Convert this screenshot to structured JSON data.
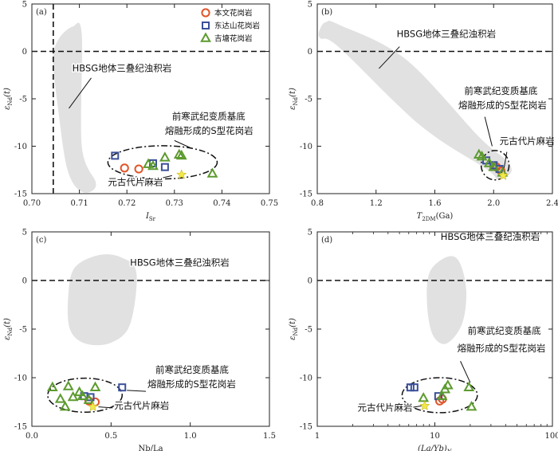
{
  "legend": {
    "items": [
      {
        "name": "本文花岗岩",
        "marker": "circle",
        "color": "#e0562a"
      },
      {
        "name": "东达山花岗岩",
        "marker": "square",
        "color": "#3a4f9a"
      },
      {
        "name": "吉塘花岗岩",
        "marker": "triangle",
        "color": "#5c9a2e"
      }
    ],
    "gneiss_color": "#f2e84a"
  },
  "colors": {
    "field": "#e1e1e1",
    "frame": "#222222"
  },
  "chart_data": [
    {
      "type": "scatter",
      "panel_label": "(a)",
      "xlabel": "I",
      "xlabel_sub": "Sr",
      "ylabel": "ε",
      "ylabel_sub": "Nd",
      "ylabel_suffix": "(t)",
      "xlim": [
        0.7,
        0.75
      ],
      "ylim": [
        -15,
        5
      ],
      "x_ticks": [
        0.7,
        0.71,
        0.72,
        0.73,
        0.74,
        0.75
      ],
      "x_tick_labels": [
        "0.70",
        "0.71",
        "0.72",
        "0.73",
        "0.74",
        "0.75"
      ],
      "y_ticks": [
        -15,
        -10,
        -5,
        0,
        5
      ],
      "y_tick_labels": [
        "-15",
        "-10",
        "-5",
        "0",
        "5"
      ],
      "hlines": [
        0
      ],
      "vlines": [
        0.7045
      ],
      "series": [
        {
          "name": "本文花岗岩",
          "marker": "circle",
          "points": [
            [
              0.7195,
              -12.3
            ],
            [
              0.7225,
              -12.4
            ]
          ]
        },
        {
          "name": "东达山花岗岩",
          "marker": "square",
          "points": [
            [
              0.7175,
              -11.0
            ],
            [
              0.7255,
              -11.8
            ],
            [
              0.728,
              -12.2
            ]
          ]
        },
        {
          "name": "吉塘花岗岩",
          "marker": "triangle",
          "points": [
            [
              0.7245,
              -11.9
            ],
            [
              0.728,
              -11.2
            ],
            [
              0.731,
              -10.9
            ],
            [
              0.7315,
              -11.0
            ],
            [
              0.738,
              -12.9
            ],
            [
              0.7255,
              -12.1
            ]
          ]
        }
      ],
      "gneiss": [
        [
          0.7315,
          -13.0
        ]
      ],
      "field": {
        "label": "HBSG地体三叠纪浊积岩",
        "polygon": [
          [
            0.7055,
            1.2
          ],
          [
            0.7085,
            2.6
          ],
          [
            0.7105,
            1.8
          ],
          [
            0.7105,
            -10.0
          ],
          [
            0.7135,
            -14.0
          ],
          [
            0.7105,
            -14.8
          ],
          [
            0.7075,
            -12.5
          ],
          [
            0.7055,
            -6.0
          ],
          [
            0.7045,
            -1.0
          ]
        ]
      },
      "ellipse": {
        "cx": 0.7275,
        "cy": -11.7,
        "rx": 0.0115,
        "ry": 1.75
      },
      "annotations": [
        {
          "text": "HBSG地体三叠纪浊积岩",
          "x": 0.7085,
          "y": -2.1
        },
        {
          "text": "前寒武纪变质基底",
          "x": 0.7295,
          "y": -7.2
        },
        {
          "text": "熔融形成的S型花岗岩",
          "x": 0.728,
          "y": -8.7
        },
        {
          "text": "元古代片麻岩",
          "x": 0.716,
          "y": -14.1
        }
      ],
      "leaders": [
        [
          [
            0.7125,
            -2.8
          ],
          [
            0.7078,
            -6.0
          ]
        ],
        [
          [
            0.73,
            -9.4
          ],
          [
            0.7335,
            -10.2
          ]
        ],
        [
          [
            0.7235,
            -13.8
          ],
          [
            0.7295,
            -13.1
          ]
        ]
      ]
    },
    {
      "type": "scatter",
      "panel_label": "(b)",
      "xlabel": "T",
      "xlabel_sub": "2DM",
      "xlabel_suffix": "(Ga)",
      "ylabel": "ε",
      "ylabel_sub": "Nd",
      "ylabel_suffix": "(t)",
      "xlim": [
        0.8,
        2.4
      ],
      "ylim": [
        -15,
        5
      ],
      "x_ticks": [
        0.8,
        1.2,
        1.6,
        2.0,
        2.4
      ],
      "x_tick_labels": [
        "0.8",
        "1.2",
        "1.6",
        "2.0",
        "2.4"
      ],
      "y_ticks": [
        -15,
        -10,
        -5,
        0,
        5
      ],
      "y_tick_labels": [
        "-15",
        "-10",
        "-5",
        "0",
        "5"
      ],
      "hlines": [
        0
      ],
      "vlines": [],
      "series": [
        {
          "name": "本文花岗岩",
          "marker": "circle",
          "points": [
            [
              2.02,
              -12.2
            ],
            [
              2.05,
              -12.6
            ]
          ]
        },
        {
          "name": "东达山花岗岩",
          "marker": "square",
          "points": [
            [
              1.95,
              -11.5
            ],
            [
              2.0,
              -12.0
            ],
            [
              2.04,
              -12.4
            ]
          ]
        },
        {
          "name": "吉塘花岗岩",
          "marker": "triangle",
          "points": [
            [
              1.9,
              -10.9
            ],
            [
              1.92,
              -11.1
            ],
            [
              1.97,
              -11.8
            ],
            [
              2.0,
              -12.2
            ],
            [
              2.06,
              -12.8
            ]
          ]
        }
      ],
      "gneiss": [
        [
          2.065,
          -13.1
        ]
      ],
      "field": {
        "label": "HBSG地体三叠纪浊积岩",
        "polygon": [
          [
            0.82,
            2.4
          ],
          [
            0.86,
            3.1
          ],
          [
            0.95,
            2.8
          ],
          [
            1.4,
            -0.8
          ],
          [
            1.9,
            -9.0
          ],
          [
            2.08,
            -11.4
          ],
          [
            2.12,
            -12.7
          ],
          [
            2.03,
            -13.5
          ],
          [
            1.95,
            -12.4
          ],
          [
            1.5,
            -7.8
          ],
          [
            0.95,
            0.4
          ],
          [
            0.82,
            1.4
          ]
        ]
      },
      "ellipse": {
        "cx": 2.01,
        "cy": -12.0,
        "rx": 0.095,
        "ry": 1.55
      },
      "annotations": [
        {
          "text": "HBSG地体三叠纪浊积岩",
          "x": 1.34,
          "y": 1.5
        },
        {
          "text": "前寒武纪变质基底",
          "x": 1.8,
          "y": -4.5
        },
        {
          "text": "熔融形成的S型花岗岩",
          "x": 1.76,
          "y": -6.0
        },
        {
          "text": "元古代片麻岩",
          "x": 2.04,
          "y": -9.8
        }
      ],
      "leaders": [
        [
          [
            1.36,
            0.5
          ],
          [
            1.22,
            -1.8
          ]
        ],
        [
          [
            1.94,
            -6.9
          ],
          [
            1.99,
            -10.0
          ]
        ],
        [
          [
            2.09,
            -10.6
          ],
          [
            2.07,
            -12.4
          ]
        ]
      ]
    },
    {
      "type": "scatter",
      "panel_label": "(c)",
      "xlabel": "Nb/La",
      "ylabel": "ε",
      "ylabel_sub": "Nd",
      "ylabel_suffix": "(t)",
      "xlim": [
        0.0,
        1.5
      ],
      "ylim": [
        -15,
        5
      ],
      "x_ticks": [
        0.0,
        0.5,
        1.0,
        1.5
      ],
      "x_tick_labels": [
        "0.0",
        "0.5",
        "1.0",
        "1.5"
      ],
      "y_ticks": [
        -15,
        -10,
        -5,
        0,
        5
      ],
      "y_tick_labels": [
        "-15",
        "-10",
        "-5",
        "0",
        "5"
      ],
      "hlines": [
        0
      ],
      "vlines": [],
      "series": [
        {
          "name": "本文花岗岩",
          "marker": "circle",
          "points": [
            [
              0.36,
              -12.4
            ],
            [
              0.4,
              -12.5
            ]
          ]
        },
        {
          "name": "东达山花岗岩",
          "marker": "square",
          "points": [
            [
              0.33,
              -11.9
            ],
            [
              0.37,
              -12.0
            ],
            [
              0.57,
              -11.0
            ]
          ]
        },
        {
          "name": "吉塘花岗岩",
          "marker": "triangle",
          "points": [
            [
              0.13,
              -11.0
            ],
            [
              0.18,
              -12.2
            ],
            [
              0.21,
              -13.0
            ],
            [
              0.23,
              -10.9
            ],
            [
              0.26,
              -12.0
            ],
            [
              0.3,
              -11.5
            ],
            [
              0.32,
              -11.9
            ],
            [
              0.36,
              -12.3
            ],
            [
              0.4,
              -11.0
            ]
          ]
        }
      ],
      "gneiss": [
        [
          0.385,
          -13.0
        ]
      ],
      "field": {
        "label": "HBSG地体三叠纪浊积岩",
        "polygon": [
          [
            0.27,
            1.3
          ],
          [
            0.42,
            2.6
          ],
          [
            0.56,
            2.4
          ],
          [
            0.66,
            0.8
          ],
          [
            0.62,
            -4.5
          ],
          [
            0.5,
            -6.4
          ],
          [
            0.34,
            -6.5
          ],
          [
            0.24,
            -5.0
          ],
          [
            0.23,
            -1.5
          ]
        ]
      },
      "ellipse": {
        "cx": 0.335,
        "cy": -11.8,
        "rx": 0.235,
        "ry": 1.75
      },
      "annotations": [
        {
          "text": "HBSG地体三叠纪浊积岩",
          "x": 0.62,
          "y": 1.5
        },
        {
          "text": "前寒武纪变质基底",
          "x": 0.78,
          "y": -9.5
        },
        {
          "text": "熔融形成的S型花岗岩",
          "x": 0.73,
          "y": -11.0
        },
        {
          "text": "元古代片麻岩",
          "x": 0.52,
          "y": -13.2
        }
      ],
      "leaders": [
        [
          [
            0.72,
            -11.4
          ],
          [
            0.6,
            -11.3
          ]
        ],
        [
          [
            0.51,
            -13.1
          ],
          [
            0.42,
            -13.0
          ]
        ]
      ]
    },
    {
      "type": "scatter",
      "panel_label": "(d)",
      "xlabel": "(La/Yb)",
      "xlabel_sub": "N",
      "ylabel": "ε",
      "ylabel_sub": "Nd",
      "ylabel_suffix": "(t)",
      "xscale": "log",
      "xlim": [
        1,
        100
      ],
      "ylim": [
        -15,
        5
      ],
      "x_ticks": [
        1,
        10,
        100
      ],
      "x_tick_labels": [
        "1",
        "10",
        "100"
      ],
      "x_minor_ticks": [
        2,
        3,
        4,
        5,
        6,
        7,
        8,
        9,
        20,
        30,
        40,
        50,
        60,
        70,
        80,
        90
      ],
      "y_ticks": [
        -15,
        -10,
        -5,
        0,
        5
      ],
      "y_tick_labels": [
        "-15",
        "-10",
        "-5",
        "0",
        "5"
      ],
      "hlines": [
        0
      ],
      "vlines": [],
      "series": [
        {
          "name": "本文花岗岩",
          "marker": "circle",
          "points": [
            [
              11.0,
              -12.4
            ],
            [
              11.6,
              -12.2
            ]
          ]
        },
        {
          "name": "东达山花岗岩",
          "marker": "square",
          "points": [
            [
              6.2,
              -11.0
            ],
            [
              6.7,
              -11.0
            ],
            [
              10.7,
              -11.9
            ]
          ]
        },
        {
          "name": "吉塘花岗岩",
          "marker": "triangle",
          "points": [
            [
              8.0,
              -12.1
            ],
            [
              11.5,
              -11.9
            ],
            [
              12.2,
              -11.2
            ],
            [
              12.9,
              -10.8
            ],
            [
              19.5,
              -11.0
            ],
            [
              20.5,
              -13.0
            ]
          ]
        }
      ],
      "gneiss": [
        [
          8.2,
          -12.9
        ]
      ],
      "field": {
        "label": "HBSG地体三叠纪浊积岩",
        "polygon": [
          [
            9.0,
            0.8
          ],
          [
            12.5,
            2.4
          ],
          [
            16.0,
            2.0
          ],
          [
            18.5,
            -1.0
          ],
          [
            17.0,
            -4.5
          ],
          [
            12.5,
            -6.5
          ],
          [
            9.6,
            -5.6
          ],
          [
            8.6,
            -2.5
          ]
        ]
      },
      "ellipse": {
        "cx": 11.0,
        "cy": -11.8,
        "rx_frac": 0.16,
        "ry": 1.8
      },
      "annotations": [
        {
          "text": "HBSG地体三叠纪浊积岩",
          "x": 11.2,
          "y": 4.2
        },
        {
          "text": "前寒武纪变质基底",
          "x": 19.0,
          "y": -5.5
        },
        {
          "text": "熔融形成的S型花岗岩",
          "x": 15.5,
          "y": -7.3
        },
        {
          "text": "元古代片麻岩",
          "x": 2.2,
          "y": -13.4
        }
      ],
      "leaders": [
        [
          [
            16.5,
            -8.3
          ],
          [
            20.0,
            -10.5
          ]
        ],
        [
          [
            5.4,
            -13.2
          ],
          [
            7.7,
            -12.9
          ]
        ]
      ]
    }
  ]
}
